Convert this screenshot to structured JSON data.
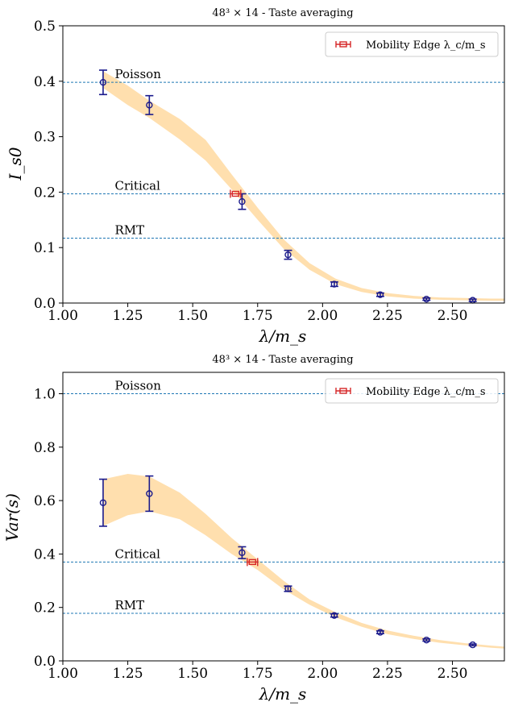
{
  "chart_data": [
    {
      "type": "scatter",
      "title": "48³ × 14 - Taste averaging",
      "xlabel": "λ/m_s",
      "ylabel": "I_s0",
      "xlim": [
        1.0,
        2.7
      ],
      "ylim": [
        0.0,
        0.5
      ],
      "x_ticks": [
        "1.00",
        "1.25",
        "1.50",
        "1.75",
        "2.00",
        "2.25",
        "2.50"
      ],
      "y_ticks": [
        "0.0",
        "0.1",
        "0.2",
        "0.3",
        "0.4",
        "0.5"
      ],
      "legend": {
        "placement": "top-right",
        "label": "Mobility Edge λ_c/m_s"
      },
      "reference_lines": [
        {
          "label": "Poisson",
          "y": 0.398
        },
        {
          "label": "Critical",
          "y": 0.197
        },
        {
          "label": "RMT",
          "y": 0.117
        }
      ],
      "series": [
        {
          "x": [
            1.155,
            1.333,
            1.69,
            1.867,
            2.045,
            2.222,
            2.4,
            2.578
          ],
          "y": [
            0.398,
            0.357,
            0.183,
            0.087,
            0.034,
            0.015,
            0.007,
            0.005
          ],
          "yerr": [
            0.022,
            0.017,
            0.014,
            0.008,
            0.004,
            0.003,
            0.002,
            0.002
          ]
        }
      ],
      "mobility_edge": {
        "x": 1.665,
        "y": 0.197,
        "xerr": 0.02
      },
      "band": {
        "x": [
          1.155,
          1.25,
          1.333,
          1.45,
          1.55,
          1.65,
          1.75,
          1.85,
          1.95,
          2.05,
          2.15,
          2.25,
          2.35,
          2.45,
          2.55,
          2.65,
          2.7
        ],
        "lower": [
          0.388,
          0.357,
          0.334,
          0.295,
          0.257,
          0.205,
          0.15,
          0.098,
          0.06,
          0.034,
          0.02,
          0.012,
          0.008,
          0.006,
          0.005,
          0.004,
          0.004
        ],
        "upper": [
          0.418,
          0.392,
          0.365,
          0.332,
          0.294,
          0.232,
          0.172,
          0.115,
          0.072,
          0.044,
          0.027,
          0.018,
          0.013,
          0.01,
          0.009,
          0.008,
          0.008
        ]
      }
    },
    {
      "type": "scatter",
      "title": "48³ × 14 - Taste averaging",
      "xlabel": "λ/m_s",
      "ylabel": "Var(s)",
      "xlim": [
        1.0,
        2.7
      ],
      "ylim": [
        0.0,
        1.08
      ],
      "x_ticks": [
        "1.00",
        "1.25",
        "1.50",
        "1.75",
        "2.00",
        "2.25",
        "2.50"
      ],
      "y_ticks": [
        "0.0",
        "0.2",
        "0.4",
        "0.6",
        "0.8",
        "1.0"
      ],
      "legend": {
        "placement": "top-right",
        "label": "Mobility Edge λ_c/m_s"
      },
      "reference_lines": [
        {
          "label": "Poisson",
          "y": 1.0
        },
        {
          "label": "Critical",
          "y": 0.37
        },
        {
          "label": "RMT",
          "y": 0.178
        }
      ],
      "series": [
        {
          "x": [
            1.155,
            1.333,
            1.69,
            1.867,
            2.045,
            2.222,
            2.4,
            2.578
          ],
          "y": [
            0.592,
            0.626,
            0.405,
            0.27,
            0.17,
            0.107,
            0.078,
            0.06
          ],
          "yerr": [
            0.088,
            0.066,
            0.022,
            0.01,
            0.006,
            0.005,
            0.004,
            0.003
          ]
        }
      ],
      "mobility_edge": {
        "x": 1.73,
        "y": 0.37,
        "xerr": 0.02
      },
      "band": {
        "x": [
          1.155,
          1.25,
          1.333,
          1.45,
          1.55,
          1.65,
          1.75,
          1.85,
          1.95,
          2.05,
          2.15,
          2.25,
          2.35,
          2.45,
          2.55,
          2.65,
          2.7
        ],
        "lower": [
          0.505,
          0.545,
          0.56,
          0.53,
          0.47,
          0.4,
          0.34,
          0.268,
          0.21,
          0.163,
          0.128,
          0.1,
          0.082,
          0.068,
          0.058,
          0.049,
          0.046
        ],
        "upper": [
          0.68,
          0.7,
          0.69,
          0.63,
          0.55,
          0.46,
          0.38,
          0.3,
          0.23,
          0.182,
          0.142,
          0.114,
          0.094,
          0.078,
          0.066,
          0.057,
          0.053
        ]
      }
    }
  ]
}
